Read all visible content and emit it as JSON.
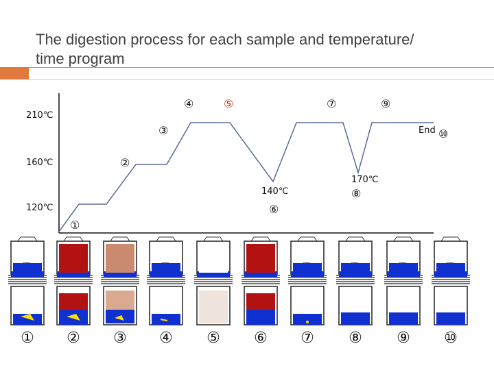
{
  "slide": {
    "title_line1": "The digestion process for each sample and temperature/",
    "title_line2": "time  program"
  },
  "program": {
    "y_labels": [
      "210℃",
      "160℃",
      "120℃"
    ],
    "point_labels": {
      "p1": "①",
      "p2": "②",
      "p3": "③",
      "p4": "④",
      "p5": "⑤",
      "p6": "⑥",
      "p7": "⑦",
      "p8": "⑧",
      "p9": "⑨",
      "p10": "⑩"
    },
    "temp_140": "140℃",
    "temp_170": "170℃",
    "end_label": "End"
  },
  "samples": [
    {
      "label": "①",
      "state": "yellow-wedge",
      "highlight": false
    },
    {
      "label": "②",
      "state": "red-yellow",
      "highlight": false
    },
    {
      "label": "③",
      "state": "brown-gradient",
      "highlight": false
    },
    {
      "label": "④",
      "state": "small-fragments",
      "highlight": false
    },
    {
      "label": "⑤",
      "state": "beige-pale",
      "highlight": true
    },
    {
      "label": "⑥",
      "state": "red-dark",
      "highlight": false
    },
    {
      "label": "⑦",
      "state": "tiny-fragment",
      "highlight": false
    },
    {
      "label": "⑧",
      "state": "blue-clear",
      "highlight": false
    },
    {
      "label": "⑨",
      "state": "blue-clear",
      "highlight": false
    },
    {
      "label": "⑩",
      "state": "blue-clear",
      "highlight": false
    }
  ],
  "colors": {
    "line": "#5a6a9a",
    "liquid_blue": "#1030d0",
    "red": "#b31212",
    "yellow": "#ffe000",
    "highlight_red": "#cc2200"
  }
}
